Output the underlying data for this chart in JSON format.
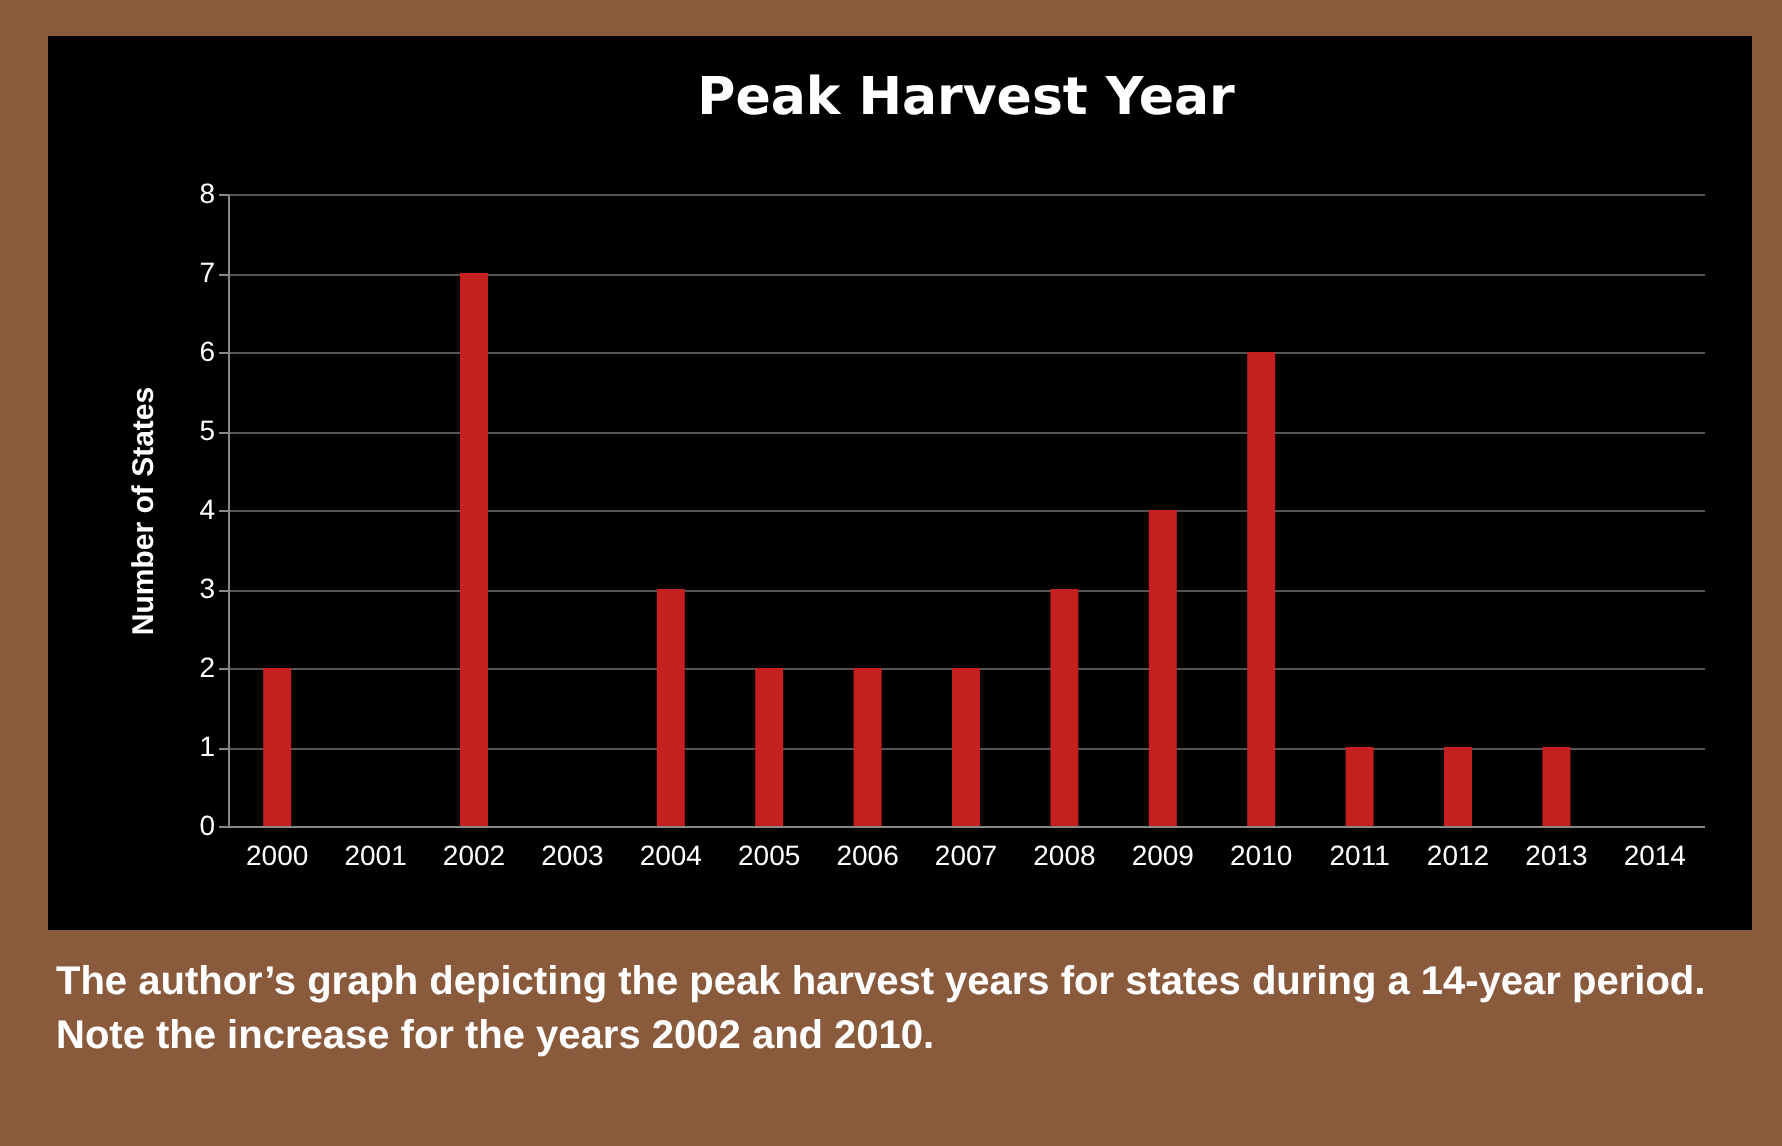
{
  "chart_data": {
    "type": "bar",
    "title": "Peak Harvest Year",
    "ylabel": "Number of States",
    "categories": [
      "2000",
      "2001",
      "2002",
      "2003",
      "2004",
      "2005",
      "2006",
      "2007",
      "2008",
      "2009",
      "2010",
      "2011",
      "2012",
      "2013",
      "2014"
    ],
    "values": [
      2,
      0,
      7,
      0,
      3,
      2,
      2,
      2,
      3,
      4,
      6,
      1,
      1,
      1,
      0
    ],
    "color": "#c42020",
    "ylim": [
      0,
      8
    ],
    "yticks": [
      0,
      1,
      2,
      3,
      4,
      5,
      6,
      7,
      8
    ],
    "grid": "y",
    "annotations": [
      "The author’s graph depicting the peak harvest years for states during a 14-year period. Note the increase for the years 2002 and 2010."
    ]
  }
}
